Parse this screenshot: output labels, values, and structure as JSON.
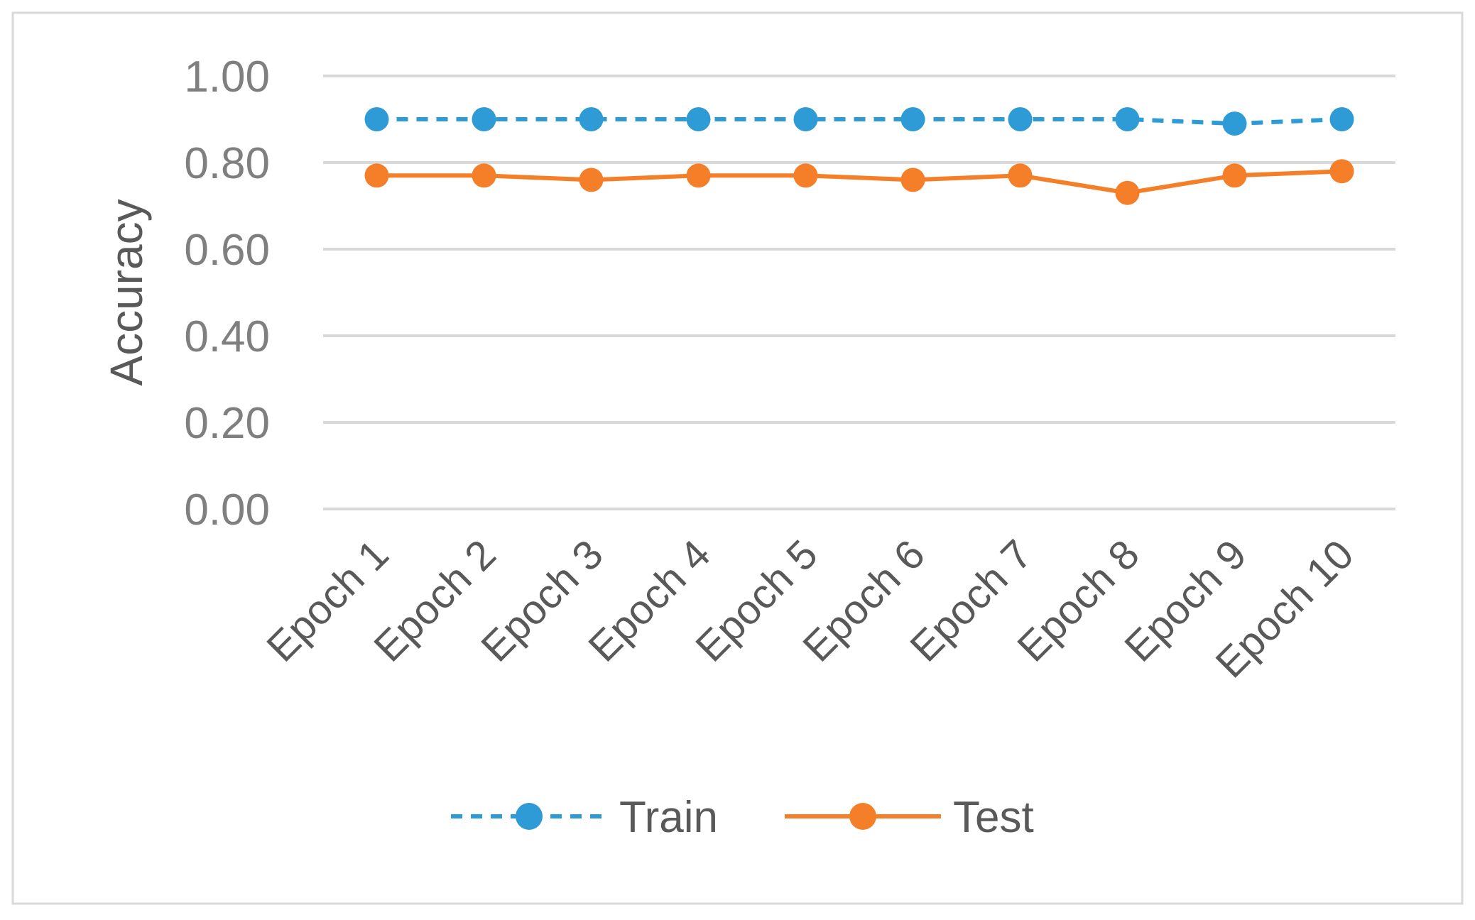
{
  "chart_data": {
    "type": "line",
    "title": "",
    "xlabel": "",
    "ylabel": "Accuracy",
    "categories": [
      "Epoch 1",
      "Epoch 2",
      "Epoch 3",
      "Epoch 4",
      "Epoch 5",
      "Epoch 6",
      "Epoch 7",
      "Epoch 8",
      "Epoch 9",
      "Epoch 10"
    ],
    "y_ticks": [
      "0.00",
      "0.20",
      "0.40",
      "0.60",
      "0.80",
      "1.00"
    ],
    "ylim": [
      0,
      1
    ],
    "grid": true,
    "legend_position": "bottom",
    "series": [
      {
        "name": "Train",
        "color": "#2E9BD6",
        "line_style": "dashed",
        "marker": "circle",
        "values": [
          0.9,
          0.9,
          0.9,
          0.9,
          0.9,
          0.9,
          0.9,
          0.9,
          0.89,
          0.9
        ]
      },
      {
        "name": "Test",
        "color": "#F47F28",
        "line_style": "solid",
        "marker": "circle",
        "values": [
          0.77,
          0.77,
          0.76,
          0.77,
          0.77,
          0.76,
          0.77,
          0.73,
          0.77,
          0.78
        ]
      }
    ]
  }
}
